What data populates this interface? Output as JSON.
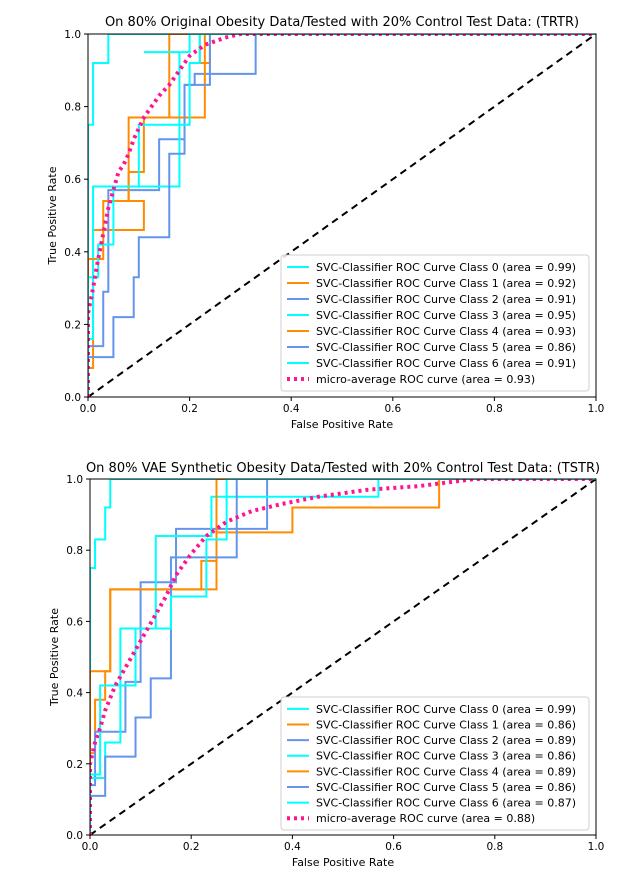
{
  "chart_data": [
    {
      "type": "line",
      "title": "On 80% Original Obesity Data/Tested with 20% Control Test Data: (TRTR)",
      "xlabel": "False Positive Rate",
      "ylabel": "True Positive Rate",
      "xlim": [
        0.0,
        1.0
      ],
      "ylim": [
        0.0,
        1.0
      ],
      "xticks": [
        "0.0",
        "0.2",
        "0.4",
        "0.6",
        "0.8",
        "1.0"
      ],
      "yticks": [
        "0.0",
        "0.2",
        "0.4",
        "0.6",
        "0.8",
        "1.0"
      ],
      "grid": false,
      "legend_position": "lower-right",
      "chance_line": {
        "x": [
          0,
          1
        ],
        "y": [
          0,
          1
        ],
        "color": "#000000",
        "style": "dashed"
      },
      "series": [
        {
          "name": "SVC-Classifier ROC Curve Class 0 (area = 0.99)",
          "color": "#00ffff",
          "style": "solid",
          "x": [
            0,
            0,
            0.01,
            0.01,
            0.04,
            0.04,
            0.21,
            0.21,
            1.0
          ],
          "y": [
            0,
            0.75,
            0.75,
            0.92,
            0.92,
            1.0,
            1.0,
            1.0,
            1.0
          ]
        },
        {
          "name": "SVC-Classifier ROC Curve Class 1 (area = 0.92)",
          "color": "#ff8c00",
          "style": "solid",
          "x": [
            0,
            0,
            0.01,
            0.01,
            0.11,
            0.11,
            0.08,
            0.08,
            0.16,
            0.16,
            0.22,
            0.22,
            0.24,
            0.24,
            1.0
          ],
          "y": [
            0,
            0.08,
            0.08,
            0.46,
            0.46,
            0.54,
            0.54,
            0.77,
            0.77,
            1.0,
            1.0,
            0.92,
            0.92,
            1.0,
            1.0
          ]
        },
        {
          "name": "SVC-Classifier ROC Curve Class 2 (area = 0.91)",
          "color": "#6495ed",
          "style": "solid",
          "x": [
            0,
            0,
            0.03,
            0.03,
            0.04,
            0.04,
            0.14,
            0.14,
            0.19,
            0.19,
            0.21,
            0.21,
            0.33,
            0.33,
            1.0
          ],
          "y": [
            0,
            0.14,
            0.14,
            0.29,
            0.29,
            0.57,
            0.57,
            0.71,
            0.71,
            0.86,
            0.86,
            0.89,
            0.89,
            1.0,
            1.0
          ]
        },
        {
          "name": "SVC-Classifier ROC Curve Class 3 (area = 0.95)",
          "color": "#00ffff",
          "style": "solid",
          "x": [
            0,
            0,
            0.01,
            0.01,
            0.18,
            0.18,
            0.11,
            0.11,
            0.2,
            0.2,
            1.0
          ],
          "y": [
            0,
            0.16,
            0.16,
            0.58,
            0.58,
            0.95,
            0.95,
            0.95,
            0.95,
            1.0,
            1.0
          ]
        },
        {
          "name": "SVC-Classifier ROC Curve Class 4 (area = 0.93)",
          "color": "#ff8c00",
          "style": "solid",
          "x": [
            0,
            0,
            0.03,
            0.03,
            0.08,
            0.08,
            0.11,
            0.11,
            0.23,
            0.23,
            1.0
          ],
          "y": [
            0,
            0.38,
            0.38,
            0.54,
            0.54,
            0.62,
            0.62,
            0.77,
            0.77,
            1.0,
            1.0
          ]
        },
        {
          "name": "SVC-Classifier ROC Curve Class 5 (area = 0.86)",
          "color": "#6495ed",
          "style": "solid",
          "x": [
            0,
            0,
            0.05,
            0.05,
            0.09,
            0.09,
            0.1,
            0.1,
            0.16,
            0.16,
            0.19,
            0.19,
            0.24,
            0.24,
            1.0
          ],
          "y": [
            0,
            0.11,
            0.11,
            0.22,
            0.22,
            0.33,
            0.33,
            0.44,
            0.44,
            0.67,
            0.67,
            0.86,
            0.86,
            1.0,
            1.0
          ]
        },
        {
          "name": "SVC-Classifier ROC Curve Class 6 (area = 0.91)",
          "color": "#00ffff",
          "style": "solid",
          "x": [
            0,
            0,
            0.02,
            0.02,
            0.05,
            0.05,
            0.1,
            0.1,
            0.2,
            0.2,
            0.22,
            0.22,
            1.0
          ],
          "y": [
            0,
            0.33,
            0.33,
            0.42,
            0.42,
            0.58,
            0.58,
            0.75,
            0.75,
            0.92,
            0.92,
            1.0,
            1.0
          ]
        },
        {
          "name": "micro-average ROC curve (area = 0.93)",
          "color": "#ff1493",
          "style": "dotted",
          "x": [
            0,
            0,
            0.01,
            0.02,
            0.03,
            0.04,
            0.05,
            0.06,
            0.07,
            0.08,
            0.09,
            0.1,
            0.11,
            0.12,
            0.14,
            0.16,
            0.18,
            0.2,
            0.23,
            0.27,
            0.3,
            0.35,
            1.0
          ],
          "y": [
            0,
            0.23,
            0.3,
            0.38,
            0.45,
            0.52,
            0.57,
            0.62,
            0.64,
            0.67,
            0.71,
            0.74,
            0.77,
            0.79,
            0.83,
            0.86,
            0.9,
            0.94,
            0.97,
            0.99,
            1.0,
            1.0,
            1.0
          ]
        }
      ]
    },
    {
      "type": "line",
      "title": "On 80% VAE Synthetic Obesity Data/Tested with 20% Control Test Data: (TSTR)",
      "xlabel": "False Positive Rate",
      "ylabel": "True Positive Rate",
      "xlim": [
        0.0,
        1.0
      ],
      "ylim": [
        0.0,
        1.0
      ],
      "xticks": [
        "0.0",
        "0.2",
        "0.4",
        "0.6",
        "0.8",
        "1.0"
      ],
      "yticks": [
        "0.0",
        "0.2",
        "0.4",
        "0.6",
        "0.8",
        "1.0"
      ],
      "grid": false,
      "legend_position": "lower-right",
      "chance_line": {
        "x": [
          0,
          1
        ],
        "y": [
          0,
          1
        ],
        "color": "#000000",
        "style": "dashed"
      },
      "series": [
        {
          "name": "SVC-Classifier ROC Curve Class 0 (area = 0.99)",
          "color": "#00ffff",
          "style": "solid",
          "x": [
            0,
            0,
            0.01,
            0.01,
            0.03,
            0.03,
            0.04,
            0.04,
            1.0
          ],
          "y": [
            0,
            0.75,
            0.75,
            0.83,
            0.83,
            0.92,
            0.92,
            1.0,
            1.0
          ]
        },
        {
          "name": "SVC-Classifier ROC Curve Class 1 (area = 0.86)",
          "color": "#ff8c00",
          "style": "solid",
          "x": [
            0,
            0,
            0.01,
            0.01,
            0.03,
            0.03,
            0.04,
            0.04,
            0.16,
            0.16,
            0.25,
            0.25,
            0.4,
            0.4,
            0.69,
            0.69,
            1.0
          ],
          "y": [
            0,
            0.23,
            0.23,
            0.38,
            0.38,
            0.46,
            0.46,
            0.69,
            0.69,
            0.69,
            0.69,
            0.85,
            0.85,
            0.92,
            0.92,
            1.0,
            1.0
          ]
        },
        {
          "name": "SVC-Classifier ROC Curve Class 2 (area = 0.89)",
          "color": "#6495ed",
          "style": "solid",
          "x": [
            0,
            0,
            0.01,
            0.01,
            0.07,
            0.07,
            0.1,
            0.1,
            0.17,
            0.17,
            0.23,
            0.23,
            0.35,
            0.35,
            1.0
          ],
          "y": [
            0,
            0.14,
            0.14,
            0.29,
            0.29,
            0.43,
            0.43,
            0.71,
            0.71,
            0.86,
            0.86,
            0.86,
            0.86,
            1.0,
            1.0
          ]
        },
        {
          "name": "SVC-Classifier ROC Curve Class 3 (area = 0.86)",
          "color": "#00ffff",
          "style": "solid",
          "x": [
            0,
            0,
            0.02,
            0.02,
            0.03,
            0.03,
            0.06,
            0.06,
            0.13,
            0.13,
            0.15,
            0.15,
            0.24,
            0.24,
            0.57,
            0.57,
            1.0
          ],
          "y": [
            0,
            0.16,
            0.16,
            0.16,
            0.16,
            0.26,
            0.26,
            0.58,
            0.58,
            0.84,
            0.84,
            0.84,
            0.84,
            0.95,
            0.95,
            1.0,
            1.0
          ]
        },
        {
          "name": "SVC-Classifier ROC Curve Class 4 (area = 0.89)",
          "color": "#ff8c00",
          "style": "solid",
          "x": [
            0,
            0,
            0.01,
            0.01,
            0.04,
            0.04,
            0.16,
            0.16,
            0.22,
            0.22,
            0.25,
            0.25,
            0.29,
            0.29,
            1.0
          ],
          "y": [
            0,
            0.46,
            0.46,
            0.46,
            0.46,
            0.69,
            0.69,
            0.69,
            0.69,
            0.77,
            0.77,
            1.0,
            1.0,
            1.0,
            1.0
          ]
        },
        {
          "name": "SVC-Classifier ROC Curve Class 5 (area = 0.86)",
          "color": "#6495ed",
          "style": "solid",
          "x": [
            0,
            0,
            0.03,
            0.03,
            0.09,
            0.09,
            0.12,
            0.12,
            0.16,
            0.16,
            0.29,
            0.29,
            1.0
          ],
          "y": [
            0,
            0.11,
            0.11,
            0.22,
            0.22,
            0.33,
            0.33,
            0.44,
            0.44,
            0.78,
            0.78,
            1.0,
            1.0
          ]
        },
        {
          "name": "SVC-Classifier ROC Curve Class 6 (area = 0.87)",
          "color": "#00ffff",
          "style": "solid",
          "x": [
            0,
            0,
            0.02,
            0.02,
            0.06,
            0.06,
            0.09,
            0.09,
            0.16,
            0.16,
            0.23,
            0.23,
            0.27,
            0.27,
            1.0
          ],
          "y": [
            0,
            0.17,
            0.17,
            0.42,
            0.42,
            0.42,
            0.42,
            0.58,
            0.58,
            0.67,
            0.67,
            0.83,
            0.83,
            1.0,
            1.0
          ]
        },
        {
          "name": "micro-average ROC curve (area = 0.88)",
          "color": "#ff1493",
          "style": "dotted",
          "x": [
            0,
            0,
            0.01,
            0.02,
            0.03,
            0.05,
            0.07,
            0.09,
            0.11,
            0.13,
            0.15,
            0.17,
            0.2,
            0.23,
            0.27,
            0.32,
            0.38,
            0.45,
            0.55,
            0.65,
            0.76,
            0.85,
            1.0
          ],
          "y": [
            0,
            0.2,
            0.26,
            0.3,
            0.35,
            0.42,
            0.47,
            0.52,
            0.57,
            0.62,
            0.67,
            0.73,
            0.79,
            0.84,
            0.88,
            0.91,
            0.93,
            0.95,
            0.97,
            0.98,
            1.0,
            1.0,
            1.0
          ]
        }
      ]
    }
  ]
}
